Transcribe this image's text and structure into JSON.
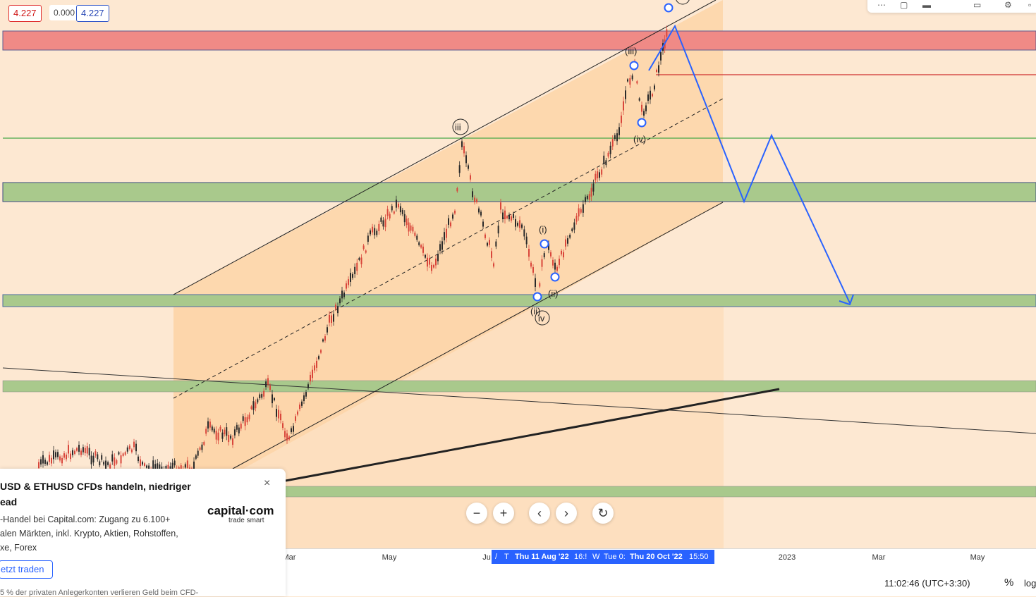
{
  "price_boxes": {
    "red": "4.227",
    "plain": "0.000",
    "blue": "4.227"
  },
  "time_axis": {
    "ticks": [
      {
        "label": "Mar"
      },
      {
        "label": "May"
      },
      {
        "label": "Ju"
      },
      {
        "label": "2023"
      },
      {
        "label": "Mar"
      },
      {
        "label": "May"
      }
    ],
    "crosshair_labels": [
      "/",
      "T",
      "Thu 11 Aug '22",
      "16:!",
      "W",
      "Tue 0:",
      "Thu 20 Oct '22",
      "15:50"
    ]
  },
  "wave_labels": [
    "iii",
    "(i)",
    "(ii)",
    "(iii)",
    "(iv)",
    "(ii)",
    "iv"
  ],
  "nav_controls": {
    "zoom_out": "−",
    "zoom_in": "+",
    "scroll_left": "‹",
    "scroll_right": "›",
    "reset": "↻"
  },
  "status_bar": {
    "clock": "11:02:46 (UTC+3:30)",
    "percent": "%",
    "log": "log"
  },
  "ad": {
    "title_line1": "USD & ETHUSD CFDs handeln, niedriger",
    "title_line2": "ead",
    "desc_line1": "-Handel bei Capital.com: Zugang zu 6.100+",
    "desc_line2": "alen Märkten, inkl. Krypto, Aktien, Rohstoffen,",
    "desc_line3": "xe, Forex",
    "logo": "capital·com",
    "tagline": "trade smart",
    "cta": "etzt traden",
    "disclaimer": "5 % der privaten Anlegerkonten verlieren Geld beim CFD-",
    "close": "×"
  },
  "colors": {
    "background": "#fde8d2",
    "channel_fill": "#fdd5a8",
    "red_zone": "#f08a86",
    "green_zone": "#a9c98c",
    "forecast_line": "#2962ff",
    "candle_up": "#2a2a2a",
    "candle_down": "#d9463b"
  }
}
